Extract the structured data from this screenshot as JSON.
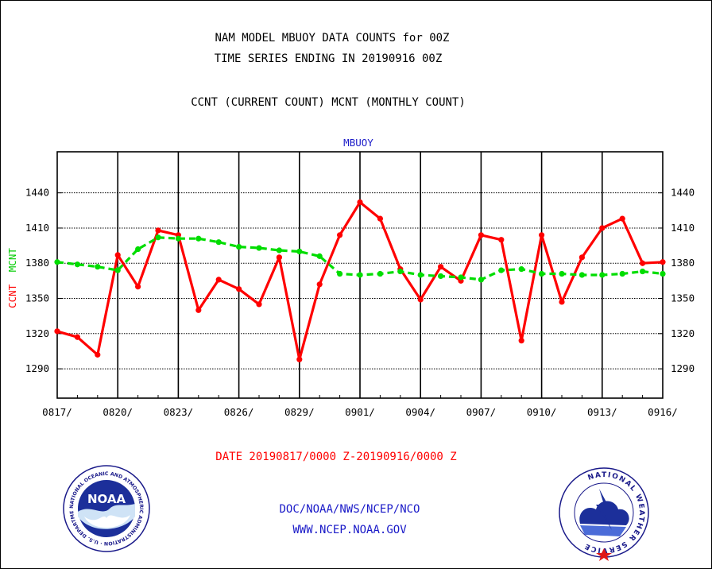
{
  "header": {
    "title_line1": "NAM MODEL MBUOY DATA COUNTS for 00Z",
    "title_line2": "TIME SERIES ENDING IN 20190916 00Z",
    "subtitle": "CCNT (CURRENT COUNT) MCNT (MONTHLY COUNT)"
  },
  "footer": {
    "date_range": "DATE 20190817/0000 Z-20190916/0000 Z",
    "org_line": "DOC/NOAA/NWS/NCEP/NCO",
    "url_line": "WWW.NCEP.NOAA.GOV"
  },
  "logos": {
    "noaa_text": "NOAA",
    "noaa_ring": "NATIONAL OCEANIC AND ATMOSPHERIC ADMINISTRATION · U.S. DEPARTMENT OF COMMERCE",
    "nws_ring": "NATIONAL WEATHER SERVICE"
  },
  "colors": {
    "ccnt": "#ff0000",
    "mcnt": "#00dd00",
    "blue_text": "#1a1ac8"
  },
  "chart_data": {
    "type": "line",
    "title": "MBUOY",
    "ylabel_parts": [
      "CCNT",
      "MCNT"
    ],
    "ylim": [
      1265,
      1475
    ],
    "yticks": [
      1290,
      1320,
      1350,
      1380,
      1410,
      1440
    ],
    "xlim": [
      0,
      30
    ],
    "xticks": [
      {
        "pos": 0,
        "label": "0817/"
      },
      {
        "pos": 3,
        "label": "0820/"
      },
      {
        "pos": 6,
        "label": "0823/"
      },
      {
        "pos": 9,
        "label": "0826/"
      },
      {
        "pos": 12,
        "label": "0829/"
      },
      {
        "pos": 15,
        "label": "0901/"
      },
      {
        "pos": 18,
        "label": "0904/"
      },
      {
        "pos": 21,
        "label": "0907/"
      },
      {
        "pos": 24,
        "label": "0910/"
      },
      {
        "pos": 27,
        "label": "0913/"
      },
      {
        "pos": 30,
        "label": "0916/"
      }
    ],
    "grid": true,
    "series": [
      {
        "name": "CCNT",
        "color": "#ff0000",
        "x": [
          0,
          1,
          2,
          3,
          4,
          5,
          6,
          7,
          8,
          9,
          10,
          11,
          12,
          13,
          14,
          15,
          16,
          17,
          18,
          19,
          20,
          21,
          22,
          23,
          24,
          25,
          26,
          27,
          28,
          29,
          30
        ],
        "values": [
          1322,
          1317,
          1302,
          1387,
          1360,
          1408,
          1404,
          1340,
          1366,
          1358,
          1345,
          1385,
          1298,
          1362,
          1404,
          1432,
          1418,
          1375,
          1349,
          1377,
          1365,
          1404,
          1400,
          1314,
          1404,
          1347,
          1385,
          1410,
          1418,
          1380,
          1381
        ]
      },
      {
        "name": "MCNT",
        "color": "#00dd00",
        "x": [
          0,
          1,
          2,
          3,
          4,
          5,
          6,
          7,
          8,
          9,
          10,
          11,
          12,
          13,
          14,
          15,
          16,
          17,
          18,
          19,
          20,
          21,
          22,
          23,
          24,
          25,
          26,
          27,
          28,
          29,
          30
        ],
        "values": [
          1381,
          1379,
          1377,
          1374,
          1392,
          1402,
          1401,
          1401,
          1398,
          1394,
          1393,
          1391,
          1390,
          1386,
          1371,
          1370,
          1371,
          1373,
          1370,
          1369,
          1368,
          1366,
          1374,
          1375,
          1371,
          1371,
          1370,
          1370,
          1371,
          1373,
          1371
        ]
      }
    ]
  }
}
